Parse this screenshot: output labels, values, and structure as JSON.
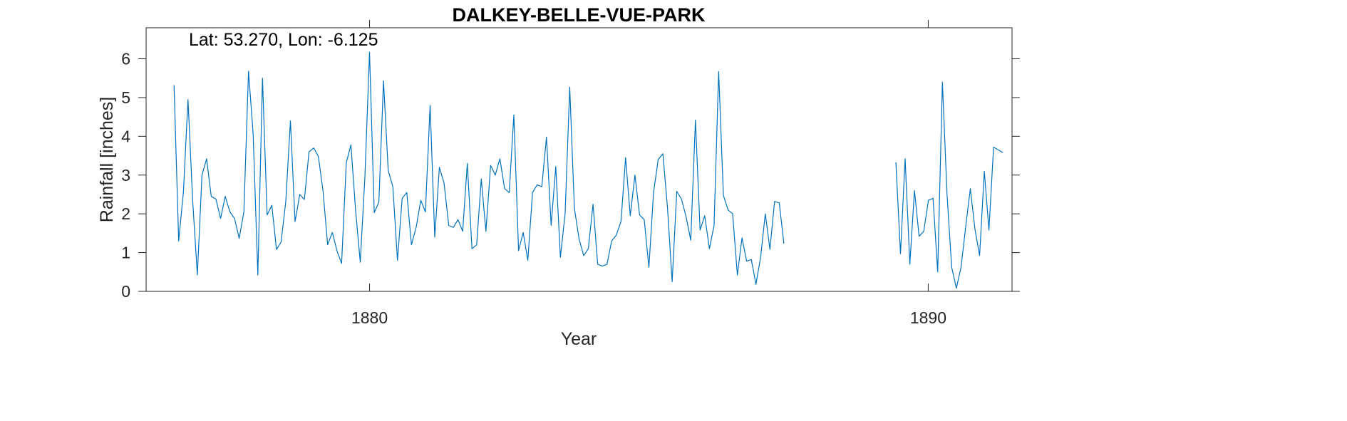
{
  "chart_data": {
    "type": "line",
    "title": "DALKEY-BELLE-VUE-PARK",
    "annotation": "Lat: 53.270, Lon: -6.125",
    "xlabel": "Year",
    "ylabel": "Rainfall [inches]",
    "xlim": [
      1876.0,
      1891.5
    ],
    "ylim": [
      0,
      6.8
    ],
    "x_ticks": [
      1880,
      1890
    ],
    "y_ticks": [
      0,
      1,
      2,
      3,
      4,
      5,
      6
    ],
    "grid": false,
    "line_color": "#0072BD",
    "series": [
      {
        "x_start": 1876.5,
        "x_step": 0.08333,
        "values": [
          5.32,
          1.3,
          2.55,
          4.95,
          2.35,
          0.42,
          3.0,
          3.42,
          2.45,
          2.38,
          1.88,
          2.45,
          2.05,
          1.88,
          1.37,
          2.05,
          5.68,
          4.05,
          0.42,
          5.5,
          1.97,
          2.22,
          1.08,
          1.27,
          2.32,
          4.4,
          1.8,
          2.5,
          2.37,
          3.6,
          3.7,
          3.48,
          2.6,
          1.2,
          1.52,
          1.05,
          0.72,
          3.32,
          3.78,
          2.1,
          0.75,
          2.95,
          6.17,
          2.03,
          2.3,
          5.43,
          3.12,
          2.7,
          0.8,
          2.4,
          2.55,
          1.2,
          1.65,
          2.35,
          2.05,
          4.8,
          1.4,
          3.2,
          2.8,
          1.7,
          1.65,
          1.85,
          1.55,
          3.3,
          1.1,
          1.2,
          2.9,
          1.55,
          3.25,
          3.0,
          3.42,
          2.65,
          2.55,
          4.55,
          1.05,
          1.52,
          0.8,
          2.55,
          2.75,
          2.7,
          3.98,
          1.7,
          3.22,
          0.88,
          2.0,
          5.27,
          2.15,
          1.35,
          0.92,
          1.1,
          2.25,
          0.7,
          0.65,
          0.7,
          1.3,
          1.45,
          1.8,
          3.45,
          1.95,
          3.0,
          1.97,
          1.85,
          0.62,
          2.55,
          3.4,
          3.55,
          2.15,
          0.25,
          2.58,
          2.38,
          1.92,
          1.32,
          4.42,
          1.58,
          1.95,
          1.1,
          1.7,
          5.67,
          2.48,
          2.1,
          2.0,
          0.42,
          1.38,
          0.78,
          0.82,
          0.18,
          0.88,
          2.0,
          1.08,
          2.32,
          2.28,
          1.23
        ]
      },
      {
        "x_start": 1889.42,
        "x_step": 0.08333,
        "values": [
          3.33,
          0.97,
          3.42,
          0.7,
          2.6,
          1.42,
          1.55,
          2.35,
          2.4,
          0.5,
          5.4,
          2.5,
          0.62,
          0.08,
          0.62,
          1.65,
          2.65,
          1.6,
          0.92,
          3.1,
          1.58,
          3.72,
          3.65,
          3.58
        ]
      }
    ]
  }
}
